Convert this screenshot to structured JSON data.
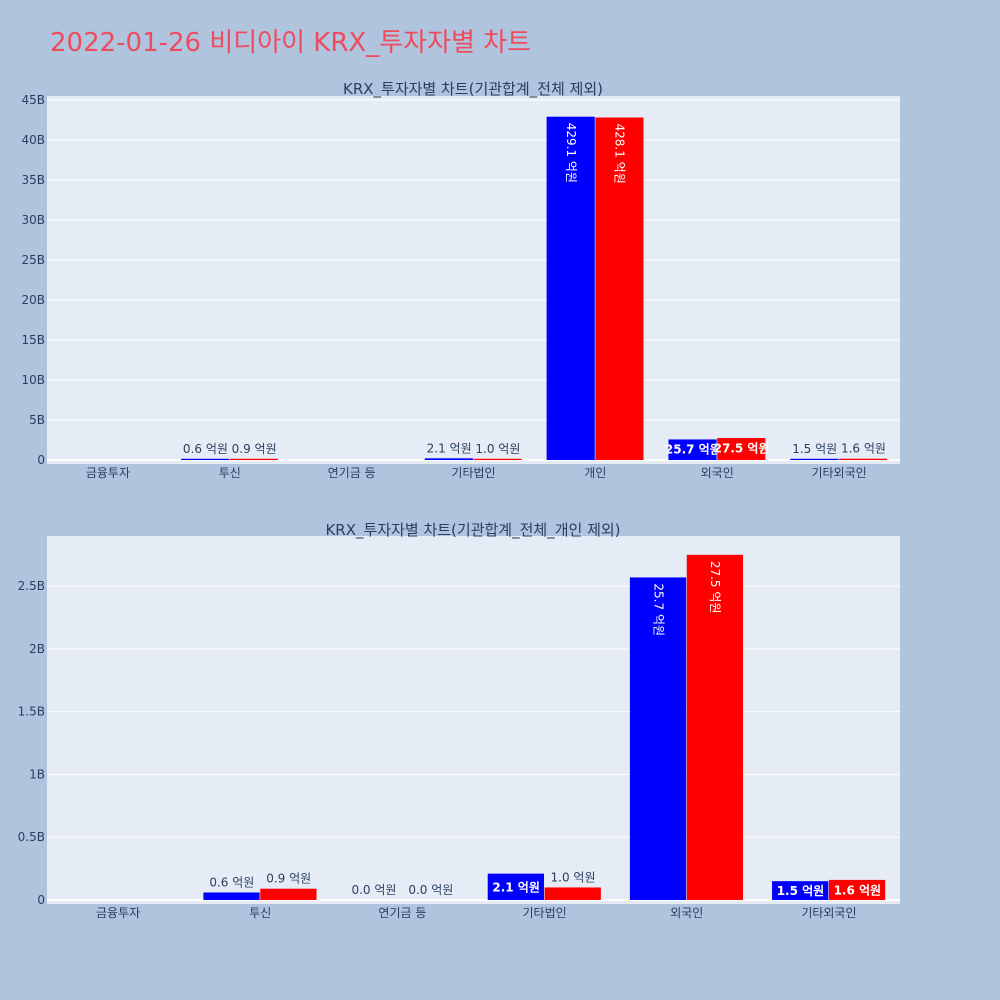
{
  "page": {
    "title": "2022-01-26 비디아이 KRX_투자자별 차트"
  },
  "colors": {
    "background": "#b0c4de",
    "plot_bg": "#e5ecf6",
    "title": "#ef4b5f",
    "buy": "#0000ff",
    "sell": "#ff0000",
    "text": "#2a3f5f"
  },
  "chart_data": [
    {
      "type": "bar",
      "title": "KRX_투자자별 차트(기관합계_전체 제외)",
      "categories": [
        "금융투자",
        "투신",
        "연기금 등",
        "기타법인",
        "개인",
        "외국인",
        "기타외국인"
      ],
      "ylim": [
        0,
        45
      ],
      "yticks": [
        0,
        5,
        10,
        15,
        20,
        25,
        30,
        35,
        40,
        45
      ],
      "ytick_labels": [
        "0",
        "5B",
        "10B",
        "15B",
        "20B",
        "25B",
        "30B",
        "35B",
        "40B",
        "45B"
      ],
      "grid": true,
      "series": [
        {
          "color": "#0000ff",
          "values": [
            null,
            0.06,
            null,
            0.21,
            42.91,
            2.57,
            0.15
          ],
          "labels": [
            "",
            "0.6 억원",
            "",
            "2.1 억원",
            "429.1 억원",
            "25.7 억원",
            "1.5 억원"
          ]
        },
        {
          "color": "#ff0000",
          "values": [
            null,
            0.09,
            null,
            0.1,
            42.81,
            2.75,
            0.16
          ],
          "labels": [
            "",
            "0.9 억원",
            "",
            "1.0 억원",
            "428.1 억원",
            "27.5 억원",
            "1.6 억원"
          ]
        }
      ]
    },
    {
      "type": "bar",
      "title": "KRX_투자자별 차트(기관합계_전체_개인 제외)",
      "categories": [
        "금융투자",
        "투신",
        "연기금 등",
        "기타법인",
        "외국인",
        "기타외국인"
      ],
      "ylim": [
        0,
        2.9
      ],
      "yticks": [
        0,
        0.5,
        1,
        1.5,
        2,
        2.5
      ],
      "ytick_labels": [
        "0",
        "0.5B",
        "1B",
        "1.5B",
        "2B",
        "2.5B"
      ],
      "grid": true,
      "series": [
        {
          "color": "#0000ff",
          "values": [
            null,
            0.06,
            0.0,
            0.21,
            2.57,
            0.15
          ],
          "labels": [
            "",
            "0.6 억원",
            "0.0 억원",
            "2.1 억원",
            "25.7 억원",
            "1.5 억원"
          ]
        },
        {
          "color": "#ff0000",
          "values": [
            null,
            0.09,
            0.0,
            0.1,
            2.75,
            0.16
          ],
          "labels": [
            "",
            "0.9 억원",
            "0.0 억원",
            "1.0 억원",
            "27.5 억원",
            "1.6 억원"
          ]
        }
      ]
    }
  ]
}
